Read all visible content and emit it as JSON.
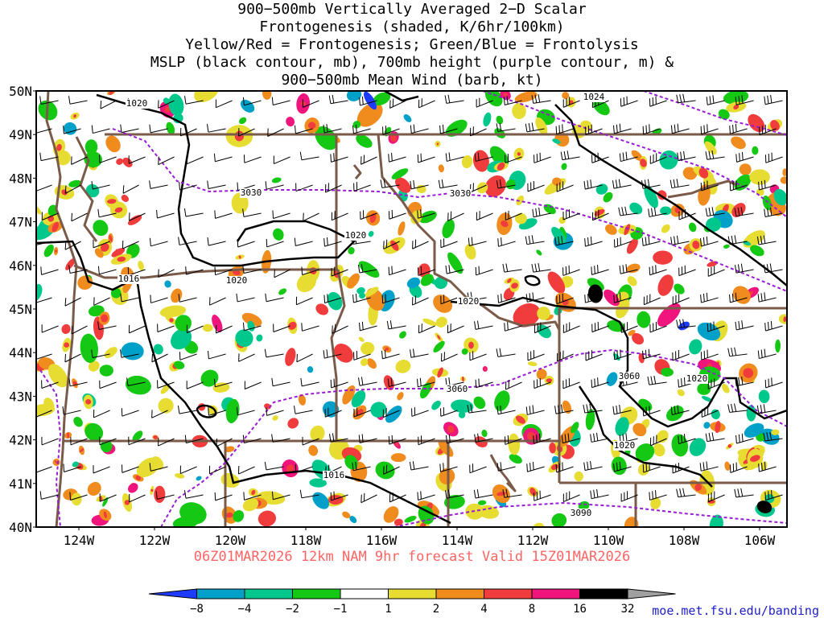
{
  "title": {
    "lines": [
      "900−500mb Vertically Averaged 2−D Scalar",
      "Frontogenesis (shaded, K/6hr/100km)",
      "Yellow/Red = Frontogenesis;  Green/Blue = Frontolysis",
      "MSLP (black contour, mb), 700mb height (purple contour, m) &",
      "900−500mb Mean Wind (barb, kt)"
    ]
  },
  "footer": {
    "run_info": "06Z01MAR2026 12km NAM 9hr forecast Valid 15Z01MAR2026",
    "credit": "moe.met.fsu.edu/banding"
  },
  "map": {
    "lat_labels": [
      "50N",
      "49N",
      "48N",
      "47N",
      "46N",
      "45N",
      "44N",
      "43N",
      "42N",
      "41N",
      "40N"
    ],
    "lon_labels": [
      "124W",
      "122W",
      "120W",
      "118W",
      "116W",
      "114W",
      "112W",
      "110W",
      "108W",
      "106W"
    ],
    "mslp_labels": [
      "1020",
      "1024",
      "1020",
      "1016",
      "1020",
      "1020",
      "1020",
      "1020",
      "1016"
    ],
    "height_labels": [
      "3030",
      "3030",
      "3060",
      "3060",
      "3090"
    ]
  },
  "colorbar": {
    "labels": [
      "−8",
      "−4",
      "−2",
      "−1",
      "1",
      "2",
      "4",
      "8",
      "16",
      "32"
    ],
    "colors": [
      "#1e3cff",
      "#00a0c8",
      "#00c88c",
      "#14c814",
      "#ffffff",
      "#e6dc32",
      "#f08c1e",
      "#f03c3c",
      "#f0147d",
      "#000000",
      "#a0a0a0"
    ]
  },
  "colors": {
    "mslp": "#000000",
    "height": "#9a1cd6",
    "border": "#7a5a48",
    "run_info": "#ff6464",
    "credit": "#2020c8"
  }
}
